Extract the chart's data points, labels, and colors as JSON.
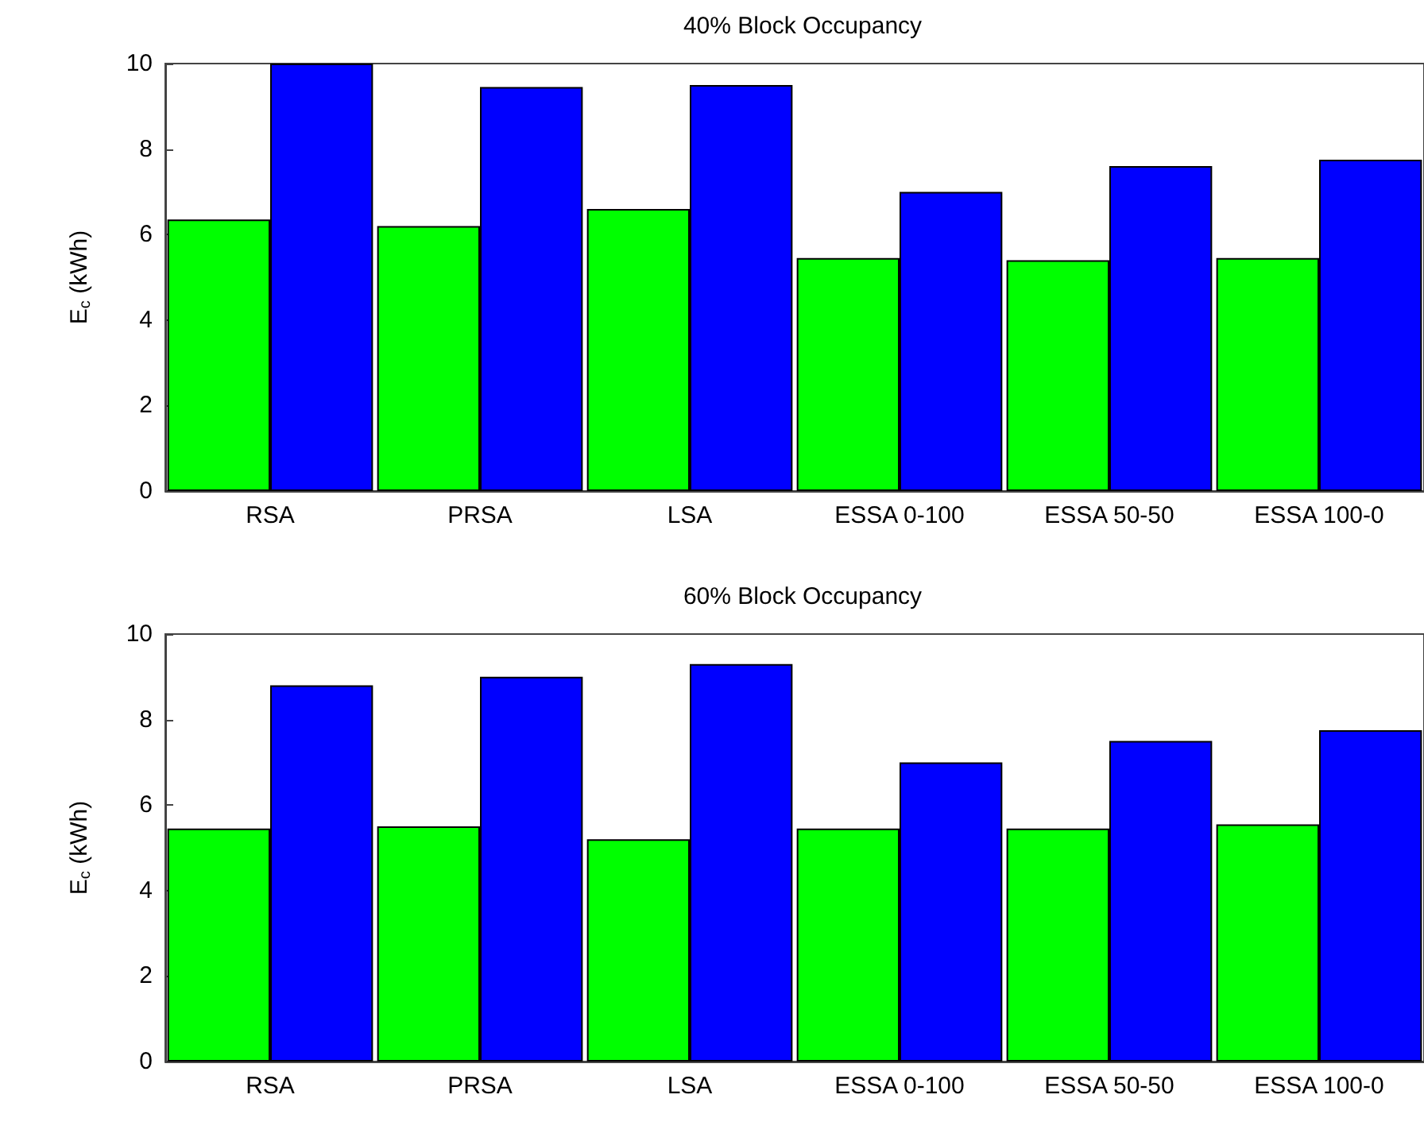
{
  "chart_data": [
    {
      "type": "bar",
      "title": "40% Block Occupancy",
      "ylabel": "E$_{c}$ (kWh)",
      "categories": [
        "RSA",
        "PRSA",
        "LSA",
        "ESSA 0-100",
        "ESSA 50-50",
        "ESSA 100-0"
      ],
      "series": [
        {
          "color": "#00ff00",
          "values": [
            6.35,
            6.2,
            6.6,
            5.45,
            5.4,
            5.45
          ]
        },
        {
          "color": "#0000ff",
          "values": [
            10.0,
            9.45,
            9.5,
            7.0,
            7.6,
            7.75
          ]
        }
      ],
      "ylim": [
        0,
        10
      ],
      "yticks": [
        0,
        2,
        4,
        6,
        8,
        10
      ],
      "grid": false
    },
    {
      "type": "bar",
      "title": "60% Block Occupancy",
      "ylabel": "E$_{c}$ (kWh)",
      "categories": [
        "RSA",
        "PRSA",
        "LSA",
        "ESSA 0-100",
        "ESSA 50-50",
        "ESSA 100-0"
      ],
      "series": [
        {
          "color": "#00ff00",
          "values": [
            5.45,
            5.5,
            5.2,
            5.45,
            5.45,
            5.55
          ]
        },
        {
          "color": "#0000ff",
          "values": [
            8.8,
            9.0,
            9.3,
            7.0,
            7.5,
            7.75
          ]
        }
      ],
      "ylim": [
        0,
        10
      ],
      "yticks": [
        0,
        2,
        4,
        6,
        8,
        10
      ],
      "grid": false
    }
  ]
}
